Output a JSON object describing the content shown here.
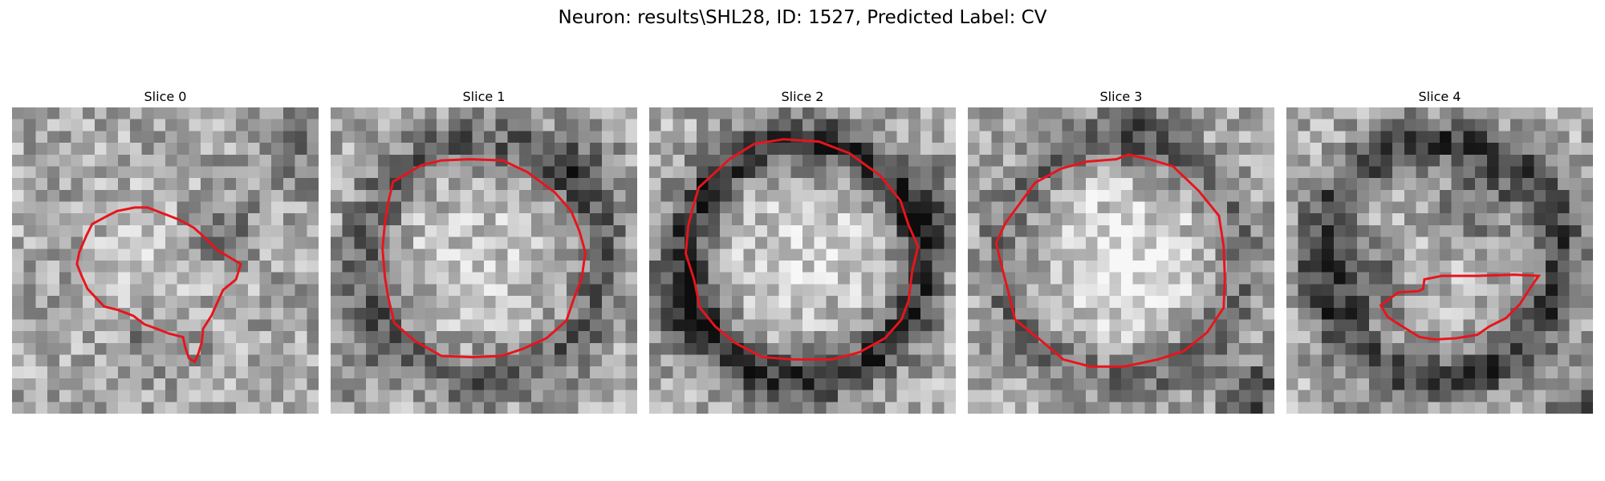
{
  "figure": {
    "title": "Neuron: results\\SHL28, ID: 1527, Predicted Label: CV"
  },
  "colors": {
    "outline": "#e8141c",
    "background": "#ffffff"
  },
  "slices": [
    {
      "label": "Slice 0",
      "texture": {
        "seed": 11,
        "dark_ring": 0.0,
        "center_bright": 0.1,
        "dark_spots": [
          [
            0.66,
            0.38,
            0.25
          ],
          [
            0.9,
            0.12,
            0.2
          ],
          [
            0.45,
            0.75,
            0.22
          ]
        ]
      },
      "contour": [
        [
          6.8,
          9.9
        ],
        [
          8.1,
          9.2
        ],
        [
          8.9,
          8.8
        ],
        [
          10.4,
          8.5
        ],
        [
          11.5,
          8.5
        ],
        [
          12.8,
          9.0
        ],
        [
          14.1,
          9.5
        ],
        [
          15.4,
          10.2
        ],
        [
          16.3,
          11.0
        ],
        [
          17.4,
          12.1
        ],
        [
          19.4,
          13.3
        ],
        [
          19.0,
          14.6
        ],
        [
          17.9,
          15.5
        ],
        [
          17.4,
          16.6
        ],
        [
          16.9,
          17.7
        ],
        [
          16.2,
          18.8
        ],
        [
          16.1,
          19.9
        ],
        [
          15.8,
          20.9
        ],
        [
          15.5,
          21.6
        ],
        [
          15.0,
          21.3
        ],
        [
          14.7,
          20.4
        ],
        [
          14.5,
          19.5
        ],
        [
          13.3,
          19.2
        ],
        [
          12.3,
          18.8
        ],
        [
          11.2,
          18.4
        ],
        [
          10.3,
          17.7
        ],
        [
          9.0,
          17.2
        ],
        [
          7.8,
          16.9
        ],
        [
          6.4,
          15.4
        ],
        [
          5.9,
          14.3
        ],
        [
          5.5,
          13.3
        ],
        [
          5.7,
          12.3
        ],
        [
          6.3,
          10.9
        ]
      ]
    },
    {
      "label": "Slice 1",
      "texture": {
        "seed": 23,
        "dark_ring": 0.28,
        "center_bright": 0.15,
        "dark_spots": [
          [
            0.05,
            0.8,
            0.15
          ],
          [
            0.8,
            0.15,
            0.18
          ]
        ]
      },
      "contour": [
        [
          5.3,
          6.3
        ],
        [
          7.7,
          4.9
        ],
        [
          9.4,
          4.5
        ],
        [
          11.8,
          4.4
        ],
        [
          14.6,
          4.5
        ],
        [
          16.7,
          5.5
        ],
        [
          19.0,
          7.2
        ],
        [
          20.4,
          8.8
        ],
        [
          21.1,
          10.5
        ],
        [
          21.6,
          12.3
        ],
        [
          21.3,
          14.5
        ],
        [
          20.6,
          16.3
        ],
        [
          20.0,
          18.1
        ],
        [
          18.3,
          19.6
        ],
        [
          16.3,
          20.5
        ],
        [
          14.5,
          21.1
        ],
        [
          12.0,
          21.2
        ],
        [
          9.4,
          21.1
        ],
        [
          7.1,
          19.8
        ],
        [
          5.4,
          18.3
        ],
        [
          4.9,
          16.2
        ],
        [
          4.6,
          14.4
        ],
        [
          4.4,
          12.0
        ],
        [
          4.6,
          9.8
        ],
        [
          4.9,
          8.0
        ]
      ]
    },
    {
      "label": "Slice 2",
      "texture": {
        "seed": 37,
        "dark_ring": 0.45,
        "center_bright": 0.18,
        "dark_spots": [
          [
            0.08,
            0.62,
            0.22
          ],
          [
            0.92,
            0.3,
            0.2
          ]
        ]
      },
      "contour": [
        [
          4.2,
          6.8
        ],
        [
          6.8,
          4.4
        ],
        [
          8.9,
          3.1
        ],
        [
          11.4,
          2.7
        ],
        [
          14.4,
          2.9
        ],
        [
          17.0,
          3.9
        ],
        [
          19.6,
          5.8
        ],
        [
          21.3,
          7.9
        ],
        [
          22.0,
          10.0
        ],
        [
          22.8,
          11.8
        ],
        [
          22.3,
          13.9
        ],
        [
          22.0,
          16.4
        ],
        [
          21.4,
          18.0
        ],
        [
          20.0,
          19.6
        ],
        [
          17.8,
          20.8
        ],
        [
          15.5,
          21.4
        ],
        [
          12.3,
          21.4
        ],
        [
          9.6,
          21.2
        ],
        [
          7.3,
          20.0
        ],
        [
          5.6,
          18.6
        ],
        [
          4.3,
          17.0
        ],
        [
          3.8,
          14.6
        ],
        [
          3.1,
          12.4
        ],
        [
          3.3,
          10.1
        ],
        [
          3.7,
          8.5
        ]
      ]
    },
    {
      "label": "Slice 3",
      "texture": {
        "seed": 53,
        "dark_ring": 0.22,
        "center_bright": 0.3,
        "dark_spots": [
          [
            0.92,
            0.92,
            0.35
          ],
          [
            0.55,
            0.05,
            0.18
          ]
        ]
      },
      "contour": [
        [
          3.2,
          9.8
        ],
        [
          5.7,
          6.4
        ],
        [
          7.9,
          5.2
        ],
        [
          10.1,
          4.6
        ],
        [
          12.6,
          4.4
        ],
        [
          13.6,
          4.0
        ],
        [
          15.4,
          4.4
        ],
        [
          17.4,
          5.0
        ],
        [
          19.6,
          7.1
        ],
        [
          21.3,
          9.2
        ],
        [
          21.7,
          11.8
        ],
        [
          21.8,
          14.5
        ],
        [
          21.7,
          17.0
        ],
        [
          20.3,
          19.1
        ],
        [
          18.3,
          20.7
        ],
        [
          16.1,
          21.4
        ],
        [
          13.3,
          22.0
        ],
        [
          10.4,
          22.0
        ],
        [
          8.1,
          21.4
        ],
        [
          6.1,
          19.7
        ],
        [
          4.0,
          18.0
        ],
        [
          3.5,
          15.9
        ],
        [
          2.9,
          13.6
        ],
        [
          2.4,
          11.5
        ]
      ]
    },
    {
      "label": "Slice 4",
      "texture": {
        "seed": 71,
        "dark_ring": 0.4,
        "center_bright": 0.05,
        "dark_spots": [
          [
            0.25,
            0.55,
            0.3
          ],
          [
            0.6,
            0.3,
            0.25
          ],
          [
            0.95,
            0.95,
            0.3
          ]
        ]
      },
      "contour": [
        [
          8.0,
          16.8
        ],
        [
          9.5,
          15.7
        ],
        [
          11.2,
          15.6
        ],
        [
          11.6,
          15.4
        ],
        [
          11.7,
          14.6
        ],
        [
          13.2,
          14.3
        ],
        [
          16.2,
          14.3
        ],
        [
          19.3,
          14.2
        ],
        [
          21.4,
          14.3
        ],
        [
          20.7,
          15.3
        ],
        [
          19.8,
          16.7
        ],
        [
          18.6,
          17.9
        ],
        [
          17.2,
          18.6
        ],
        [
          16.2,
          19.3
        ],
        [
          14.4,
          19.6
        ],
        [
          12.6,
          19.7
        ],
        [
          11.3,
          19.5
        ],
        [
          10.0,
          18.7
        ],
        [
          8.6,
          17.8
        ]
      ]
    }
  ]
}
